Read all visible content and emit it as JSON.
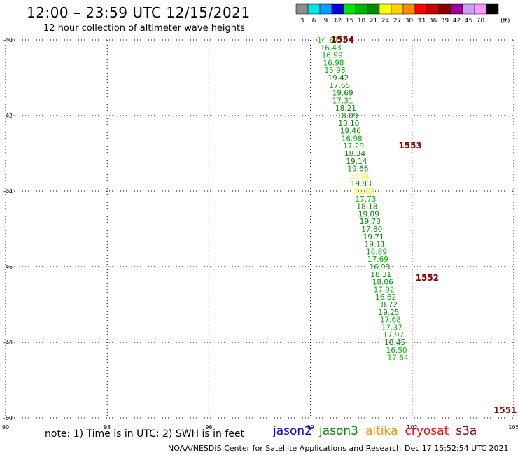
{
  "header": {
    "title": "12:00 – 23:59 UTC 12/15/2021",
    "subtitle": "12 hour collection of altimeter wave heights"
  },
  "colorbar": {
    "unit": "(ft)",
    "bins": [
      {
        "label": "3",
        "color": "#8c8c8c"
      },
      {
        "label": "6",
        "color": "#00e6e6"
      },
      {
        "label": "9",
        "color": "#00a0ff"
      },
      {
        "label": "12",
        "color": "#0000dc"
      },
      {
        "label": "15",
        "color": "#00e600"
      },
      {
        "label": "18",
        "color": "#00b400"
      },
      {
        "label": "21",
        "color": "#008c00"
      },
      {
        "label": "24",
        "color": "#ffff00"
      },
      {
        "label": "27",
        "color": "#ffd200"
      },
      {
        "label": "30",
        "color": "#ff8c00"
      },
      {
        "label": "33",
        "color": "#ff0000"
      },
      {
        "label": "36",
        "color": "#c80000"
      },
      {
        "label": "39",
        "color": "#8c0000"
      },
      {
        "label": "42",
        "color": "#a000a0"
      },
      {
        "label": "45",
        "color": "#c8a0ff"
      },
      {
        "label": "70",
        "color": "#ff96ff"
      },
      {
        "label": "",
        "color": "#000000"
      }
    ]
  },
  "map": {
    "lon_range": [
      90,
      105
    ],
    "lat_range": [
      -50,
      -40
    ],
    "x_ticks": [
      "90",
      "93",
      "96",
      "99",
      "102",
      "105"
    ],
    "y_ticks": [
      "-40",
      "-42",
      "-44",
      "-46",
      "-48",
      "-50"
    ],
    "grid": "dotted"
  },
  "time_labels": [
    {
      "text": "1554",
      "lat": -40.0,
      "lon": 99.6
    },
    {
      "text": "1553",
      "lat": -42.8,
      "lon": 101.6
    },
    {
      "text": "1552",
      "lat": -46.3,
      "lon": 102.1
    },
    {
      "text": "1551",
      "lat": -49.8,
      "lon": 104.4
    }
  ],
  "chart_data": {
    "type": "scatter",
    "title": "12:00 – 23:59 UTC 12/15/2021",
    "subtitle": "12 hour collection of altimeter wave heights",
    "x_axis": "longitude",
    "y_axis": "latitude",
    "xlim": [
      90,
      105
    ],
    "ylim": [
      -50,
      -40
    ],
    "points": [
      {
        "lon": 99.2,
        "lat": -40.0,
        "swh": "14.67",
        "color": "#00e600"
      },
      {
        "lon": 99.29,
        "lat": -40.2,
        "swh": "16.43",
        "color": "#00b400"
      },
      {
        "lon": 99.33,
        "lat": -40.4,
        "swh": "16.99",
        "color": "#00b400"
      },
      {
        "lon": 99.37,
        "lat": -40.6,
        "swh": "16.98",
        "color": "#00b400"
      },
      {
        "lon": 99.41,
        "lat": -40.8,
        "swh": "15.98",
        "color": "#00b400"
      },
      {
        "lon": 99.51,
        "lat": -41.0,
        "swh": "19.42",
        "color": "#008c00"
      },
      {
        "lon": 99.55,
        "lat": -41.2,
        "swh": "17.65",
        "color": "#00b400"
      },
      {
        "lon": 99.64,
        "lat": -41.4,
        "swh": "19.69",
        "color": "#008c00"
      },
      {
        "lon": 99.64,
        "lat": -41.6,
        "swh": "17.31",
        "color": "#00b400"
      },
      {
        "lon": 99.73,
        "lat": -41.8,
        "swh": "18.21",
        "color": "#008c00"
      },
      {
        "lon": 99.78,
        "lat": -42.0,
        "swh": "18.09",
        "color": "#008c00"
      },
      {
        "lon": 99.82,
        "lat": -42.2,
        "swh": "18.10",
        "color": "#008c00"
      },
      {
        "lon": 99.87,
        "lat": -42.4,
        "swh": "19.46",
        "color": "#008c00"
      },
      {
        "lon": 99.91,
        "lat": -42.6,
        "swh": "16.98",
        "color": "#00b400"
      },
      {
        "lon": 99.96,
        "lat": -42.8,
        "swh": "17.29",
        "color": "#00b400"
      },
      {
        "lon": 100.0,
        "lat": -43.0,
        "swh": "18.34",
        "color": "#008c00"
      },
      {
        "lon": 100.05,
        "lat": -43.2,
        "swh": "19.14",
        "color": "#008c00"
      },
      {
        "lon": 100.09,
        "lat": -43.4,
        "swh": "19.66",
        "color": "#008c00"
      },
      {
        "lon": 100.14,
        "lat": -43.6,
        "swh": "21.01",
        "color": "#ffff00"
      },
      {
        "lon": 100.18,
        "lat": -43.8,
        "swh": "19.83",
        "color": "#008c00"
      },
      {
        "lon": 100.27,
        "lat": -44.0,
        "swh": "21.63",
        "color": "#ffff00"
      },
      {
        "lon": 100.32,
        "lat": -44.2,
        "swh": "17.73",
        "color": "#00b400"
      },
      {
        "lon": 100.36,
        "lat": -44.4,
        "swh": "18.18",
        "color": "#008c00"
      },
      {
        "lon": 100.41,
        "lat": -44.6,
        "swh": "19.09",
        "color": "#008c00"
      },
      {
        "lon": 100.45,
        "lat": -44.8,
        "swh": "19.78",
        "color": "#008c00"
      },
      {
        "lon": 100.5,
        "lat": -45.0,
        "swh": "17.80",
        "color": "#00b400"
      },
      {
        "lon": 100.55,
        "lat": -45.2,
        "swh": "19.71",
        "color": "#008c00"
      },
      {
        "lon": 100.59,
        "lat": -45.4,
        "swh": "19.11",
        "color": "#008c00"
      },
      {
        "lon": 100.64,
        "lat": -45.6,
        "swh": "16.89",
        "color": "#00b400"
      },
      {
        "lon": 100.68,
        "lat": -45.8,
        "swh": "17.69",
        "color": "#00b400"
      },
      {
        "lon": 100.73,
        "lat": -46.0,
        "swh": "16.93",
        "color": "#00b400"
      },
      {
        "lon": 100.77,
        "lat": -46.2,
        "swh": "18.31",
        "color": "#008c00"
      },
      {
        "lon": 100.82,
        "lat": -46.4,
        "swh": "18.06",
        "color": "#008c00"
      },
      {
        "lon": 100.86,
        "lat": -46.6,
        "swh": "17.92",
        "color": "#00b400"
      },
      {
        "lon": 100.91,
        "lat": -46.8,
        "swh": "16.62",
        "color": "#00b400"
      },
      {
        "lon": 100.95,
        "lat": -47.0,
        "swh": "18.72",
        "color": "#008c00"
      },
      {
        "lon": 101.0,
        "lat": -47.2,
        "swh": "19.25",
        "color": "#008c00"
      },
      {
        "lon": 101.05,
        "lat": -47.4,
        "swh": "17.68",
        "color": "#00b400"
      },
      {
        "lon": 101.09,
        "lat": -47.6,
        "swh": "17.37",
        "color": "#00b400"
      },
      {
        "lon": 101.14,
        "lat": -47.8,
        "swh": "17.97",
        "color": "#00b400"
      },
      {
        "lon": 101.18,
        "lat": -48.0,
        "swh": "18.45",
        "color": "#008c00"
      },
      {
        "lon": 101.23,
        "lat": -48.2,
        "swh": "16.50",
        "color": "#00b400"
      },
      {
        "lon": 101.27,
        "lat": -48.4,
        "swh": "17.64",
        "color": "#00b400"
      }
    ]
  },
  "notes": {
    "note_text": "note: 1) Time is in UTC; 2) SWH is in feet"
  },
  "legend": [
    {
      "name": "jason2",
      "color": "#0000dc"
    },
    {
      "name": "jason3",
      "color": "#008c00"
    },
    {
      "name": "altika",
      "color": "#ff8c00"
    },
    {
      "name": "cryosat",
      "color": "#ff0000"
    },
    {
      "name": "s3a",
      "color": "#8c0000"
    }
  ],
  "footer": {
    "source": "NOAA/NESDIS Center for Satellite Applications and Research",
    "timestamp": "Dec 17 15:52:54 UTC 2021"
  }
}
